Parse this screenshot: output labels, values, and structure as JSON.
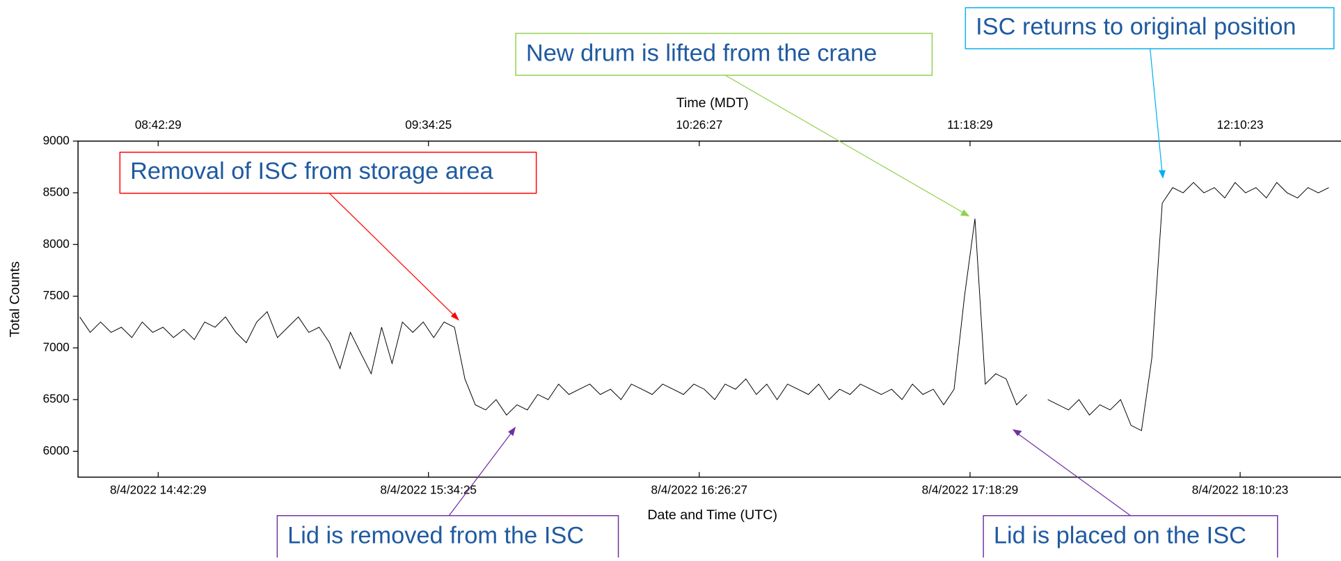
{
  "chart_data": {
    "type": "line",
    "x_label": "Date and Time (UTC)",
    "x2_label": "Time (MDT)",
    "y_label": "Total Counts",
    "xlim": [
      52025,
      66583
    ],
    "xticks": [
      {
        "value": 52949,
        "label": "8/4/2022 14:42:29"
      },
      {
        "value": 56065,
        "label": "8/4/2022 15:34:25"
      },
      {
        "value": 59187,
        "label": "8/4/2022 16:26:27"
      },
      {
        "value": 62309,
        "label": "8/4/2022 17:18:29"
      },
      {
        "value": 65423,
        "label": "8/4/2022 18:10:23"
      }
    ],
    "x2ticks": [
      {
        "value": 52949,
        "label": "08:42:29"
      },
      {
        "value": 56065,
        "label": "09:34:25"
      },
      {
        "value": 59187,
        "label": "10:26:27"
      },
      {
        "value": 62309,
        "label": "11:18:29"
      },
      {
        "value": 65423,
        "label": "12:10:23"
      }
    ],
    "ylim": [
      5750,
      9000
    ],
    "yticks": [
      6000,
      6500,
      7000,
      7500,
      8000,
      8500,
      9000
    ],
    "series": [
      {
        "color": "#000000",
        "x": [
          52045,
          52165,
          52285,
          52405,
          52525,
          52645,
          52765,
          52885,
          53005,
          53125,
          53245,
          53365,
          53485,
          53605,
          53725,
          53845,
          53965,
          54085,
          54205,
          54325,
          54445,
          54565,
          54685,
          54805,
          54925,
          55045,
          55165,
          55285,
          55405,
          55525,
          55645,
          55765,
          55885,
          56005,
          56125,
          56245,
          56365,
          56485,
          56605,
          56725,
          56845,
          56965,
          57085,
          57205,
          57325,
          57445,
          57565,
          57685,
          57805,
          57925,
          58045,
          58165,
          58285,
          58405,
          58525,
          58645,
          58765,
          58885,
          59005,
          59125,
          59245,
          59365,
          59485,
          59605,
          59725,
          59845,
          59965,
          60085,
          60205,
          60325,
          60445,
          60565,
          60685,
          60805,
          60925,
          61045,
          61165,
          61285,
          61405,
          61525,
          61645,
          61765,
          61885,
          62005,
          62125,
          62245,
          62365,
          62485,
          62605,
          62725,
          62845,
          62965,
          63085,
          63205,
          63325,
          63445,
          63565,
          63685,
          63805,
          63925,
          64045,
          64165,
          64285,
          64405,
          64525,
          64645,
          64765,
          64885,
          65005,
          65125,
          65245,
          65365,
          65485,
          65605,
          65725,
          65845,
          65965,
          66085,
          66205,
          66325,
          66445
        ],
        "values": [
          7300,
          7150,
          7250,
          7150,
          7200,
          7100,
          7250,
          7150,
          7200,
          7100,
          7180,
          7080,
          7250,
          7200,
          7300,
          7150,
          7050,
          7250,
          7350,
          7100,
          7200,
          7300,
          7150,
          7200,
          7050,
          6800,
          7150,
          6950,
          6750,
          7200,
          6850,
          7250,
          7150,
          7250,
          7100,
          7250,
          7200,
          6700,
          6450,
          6400,
          6500,
          6350,
          6450,
          6400,
          6550,
          6500,
          6650,
          6550,
          6600,
          6650,
          6550,
          6600,
          6500,
          6650,
          6600,
          6550,
          6650,
          6600,
          6550,
          6650,
          6600,
          6500,
          6650,
          6600,
          6700,
          6550,
          6650,
          6500,
          6650,
          6600,
          6550,
          6650,
          6500,
          6600,
          6550,
          6650,
          6600,
          6550,
          6600,
          6500,
          6650,
          6550,
          6600,
          6450,
          6600,
          7500,
          8250,
          6650,
          6750,
          6700,
          6450,
          6550,
          null,
          6500,
          6450,
          6400,
          6500,
          6350,
          6450,
          6400,
          6500,
          6250,
          6200,
          6900,
          8400,
          8550,
          8500,
          8600,
          8500,
          8550,
          8450,
          8600,
          8500,
          8550,
          8450,
          8600,
          8500,
          8450,
          8550,
          8500,
          8550
        ]
      }
    ],
    "annotations": [
      "Removal of ISC from storage area",
      "New drum is lifted from the crane",
      "ISC returns to original position",
      "Lid is removed from the ISC",
      "Lid is placed on the ISC"
    ]
  }
}
